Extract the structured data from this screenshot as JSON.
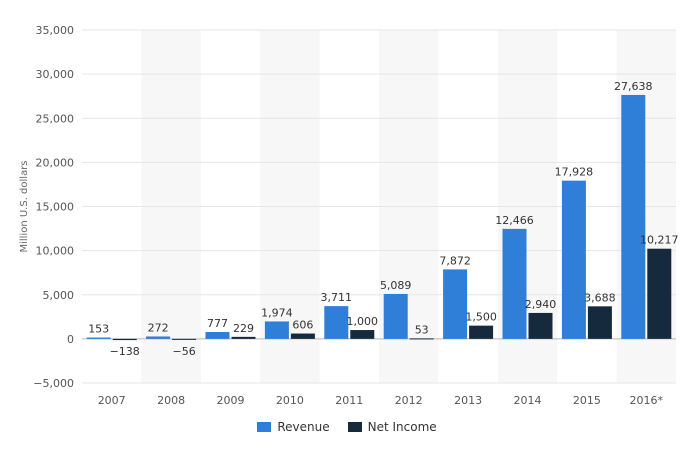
{
  "chart_data": {
    "type": "bar",
    "categories": [
      "2007",
      "2008",
      "2009",
      "2010",
      "2011",
      "2012",
      "2013",
      "2014",
      "2015",
      "2016*"
    ],
    "series": [
      {
        "name": "Revenue",
        "color": "#2f7ed8",
        "values": [
          153,
          272,
          777,
          1974,
          3711,
          5089,
          7872,
          12466,
          17928,
          27638
        ],
        "labels": [
          "153",
          "272",
          "777",
          "1,974",
          "3,711",
          "5,089",
          "7,872",
          "12,466",
          "17,928",
          "27,638"
        ]
      },
      {
        "name": "Net Income",
        "color": "#162a3e",
        "values": [
          -138,
          -56,
          229,
          606,
          1000,
          53,
          1500,
          2940,
          3688,
          10217
        ],
        "labels": [
          "−138",
          "−56",
          "229",
          "606",
          "1,000",
          "53",
          "1,500",
          "2,940",
          "3,688",
          "10,217"
        ]
      }
    ],
    "ylabel": "Million U.S. dollars",
    "ylim": [
      -5000,
      35000
    ],
    "yticks": [
      -5000,
      0,
      5000,
      10000,
      15000,
      20000,
      25000,
      30000,
      35000
    ],
    "ytick_labels": [
      "−5,000",
      "0",
      "5,000",
      "10,000",
      "15,000",
      "20,000",
      "25,000",
      "30,000",
      "35,000"
    ],
    "grid": true,
    "legend_position": "bottom-center"
  }
}
